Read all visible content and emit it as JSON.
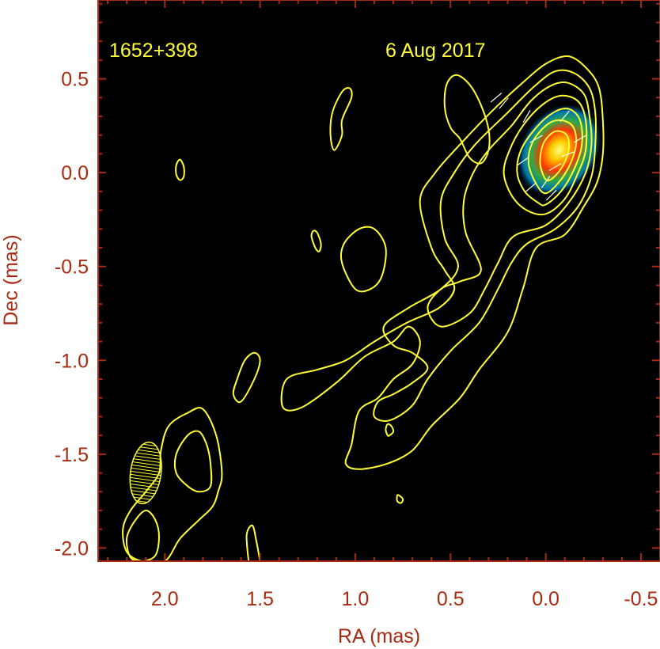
{
  "chart_data": {
    "type": "contour",
    "source": "1652+398",
    "date": "6 Aug 2017",
    "xlabel": "RA (mas)",
    "ylabel": "Dec (mas)",
    "xlim": [
      2.35,
      -0.6
    ],
    "ylim": [
      -2.07,
      0.92
    ],
    "x_ticks": [
      {
        "value": 2.0,
        "label": "2.0"
      },
      {
        "value": 1.5,
        "label": "1.5"
      },
      {
        "value": 1.0,
        "label": "1.0"
      },
      {
        "value": 0.5,
        "label": "0.5"
      },
      {
        "value": 0.0,
        "label": "0.0"
      },
      {
        "value": -0.5,
        "label": "-0.5"
      }
    ],
    "y_ticks": [
      {
        "value": 0.5,
        "label": "0.5"
      },
      {
        "value": 0.0,
        "label": "0.0"
      },
      {
        "value": -0.5,
        "label": "-0.5"
      },
      {
        "value": -1.0,
        "label": "-1.0"
      },
      {
        "value": -1.5,
        "label": "-1.5"
      },
      {
        "value": -2.0,
        "label": "-2.0"
      }
    ],
    "core_peak": {
      "ra": -0.07,
      "dec": 0.12
    },
    "beam": {
      "ra": 2.1,
      "dec": -1.6,
      "major": 0.33,
      "minor": 0.16
    },
    "contours": [
      {
        "name": "c1",
        "points": [
          [
            0.05,
            -0.4
          ],
          [
            -0.1,
            -0.33
          ],
          [
            -0.2,
            -0.18
          ],
          [
            -0.27,
            -0.05
          ],
          [
            -0.3,
            0.1
          ],
          [
            -0.3,
            0.28
          ],
          [
            -0.28,
            0.45
          ],
          [
            -0.22,
            0.55
          ],
          [
            -0.12,
            0.62
          ],
          [
            0.0,
            0.58
          ],
          [
            0.12,
            0.48
          ],
          [
            0.28,
            0.33
          ],
          [
            0.45,
            0.15
          ],
          [
            0.58,
            0.0
          ],
          [
            0.66,
            -0.15
          ],
          [
            0.6,
            -0.4
          ],
          [
            0.53,
            -0.52
          ],
          [
            0.48,
            -0.62
          ],
          [
            0.56,
            -0.72
          ],
          [
            0.73,
            -0.8
          ],
          [
            0.9,
            -0.9
          ],
          [
            1.05,
            -1.0
          ],
          [
            1.2,
            -1.05
          ],
          [
            1.36,
            -1.1
          ],
          [
            1.38,
            -1.25
          ],
          [
            1.28,
            -1.25
          ],
          [
            1.1,
            -1.12
          ],
          [
            0.95,
            -0.98
          ],
          [
            0.8,
            -0.9
          ],
          [
            0.72,
            -0.82
          ],
          [
            0.66,
            -0.9
          ],
          [
            0.7,
            -1.02
          ],
          [
            0.8,
            -1.1
          ],
          [
            0.88,
            -1.2
          ],
          [
            0.98,
            -1.27
          ],
          [
            1.02,
            -1.45
          ],
          [
            1.05,
            -1.55
          ],
          [
            0.98,
            -1.58
          ],
          [
            0.83,
            -1.55
          ],
          [
            0.7,
            -1.48
          ],
          [
            0.6,
            -1.35
          ],
          [
            0.45,
            -1.2
          ],
          [
            0.35,
            -1.05
          ],
          [
            0.2,
            -0.85
          ],
          [
            0.12,
            -0.62
          ],
          [
            0.05,
            -0.4
          ]
        ]
      },
      {
        "name": "c2",
        "points": [
          [
            0.1,
            -0.38
          ],
          [
            -0.05,
            -0.3
          ],
          [
            -0.17,
            -0.18
          ],
          [
            -0.24,
            -0.02
          ],
          [
            -0.26,
            0.15
          ],
          [
            -0.26,
            0.32
          ],
          [
            -0.23,
            0.45
          ],
          [
            -0.15,
            0.53
          ],
          [
            -0.05,
            0.54
          ],
          [
            0.06,
            0.46
          ],
          [
            0.2,
            0.32
          ],
          [
            0.37,
            0.15
          ],
          [
            0.48,
            0.0
          ],
          [
            0.55,
            -0.15
          ],
          [
            0.53,
            -0.35
          ],
          [
            0.46,
            -0.5
          ],
          [
            0.55,
            -0.62
          ],
          [
            0.72,
            -0.72
          ],
          [
            0.85,
            -0.82
          ],
          [
            0.8,
            -0.92
          ],
          [
            0.7,
            -0.96
          ],
          [
            0.62,
            -1.04
          ],
          [
            0.7,
            -1.12
          ],
          [
            0.8,
            -1.18
          ],
          [
            0.88,
            -1.22
          ],
          [
            0.9,
            -1.3
          ],
          [
            0.82,
            -1.32
          ],
          [
            0.7,
            -1.24
          ],
          [
            0.62,
            -1.1
          ],
          [
            0.5,
            -0.95
          ],
          [
            0.35,
            -0.8
          ],
          [
            0.25,
            -0.62
          ],
          [
            0.18,
            -0.48
          ],
          [
            0.1,
            -0.38
          ]
        ]
      },
      {
        "name": "c3",
        "points": [
          [
            0.17,
            -0.34
          ],
          [
            0.0,
            -0.28
          ],
          [
            -0.12,
            -0.16
          ],
          [
            -0.21,
            0.0
          ],
          [
            -0.24,
            0.15
          ],
          [
            -0.23,
            0.3
          ],
          [
            -0.2,
            0.42
          ],
          [
            -0.11,
            0.48
          ],
          [
            -0.02,
            0.46
          ],
          [
            0.08,
            0.38
          ],
          [
            0.18,
            0.25
          ],
          [
            0.3,
            0.12
          ],
          [
            0.38,
            0.0
          ],
          [
            0.43,
            -0.15
          ],
          [
            0.42,
            -0.32
          ],
          [
            0.34,
            -0.52
          ],
          [
            0.45,
            -0.58
          ],
          [
            0.55,
            -0.62
          ],
          [
            0.62,
            -0.72
          ],
          [
            0.55,
            -0.82
          ],
          [
            0.4,
            -0.75
          ],
          [
            0.32,
            -0.62
          ],
          [
            0.25,
            -0.48
          ],
          [
            0.17,
            -0.34
          ]
        ]
      },
      {
        "name": "c4",
        "points": [
          [
            0.0,
            -0.22
          ],
          [
            -0.1,
            -0.14
          ],
          [
            -0.17,
            0.0
          ],
          [
            -0.21,
            0.12
          ],
          [
            -0.21,
            0.28
          ],
          [
            -0.17,
            0.38
          ],
          [
            -0.08,
            0.41
          ],
          [
            0.02,
            0.36
          ],
          [
            0.12,
            0.25
          ],
          [
            0.19,
            0.12
          ],
          [
            0.22,
            0.0
          ],
          [
            0.18,
            -0.12
          ],
          [
            0.1,
            -0.2
          ],
          [
            0.0,
            -0.22
          ]
        ]
      },
      {
        "name": "c5",
        "points": [
          [
            0.0,
            -0.17
          ],
          [
            -0.08,
            -0.1
          ],
          [
            -0.15,
            0.02
          ],
          [
            -0.19,
            0.15
          ],
          [
            -0.18,
            0.28
          ],
          [
            -0.12,
            0.34
          ],
          [
            -0.04,
            0.32
          ],
          [
            0.05,
            0.24
          ],
          [
            0.13,
            0.12
          ],
          [
            0.15,
            0.0
          ],
          [
            0.11,
            -0.1
          ],
          [
            0.04,
            -0.16
          ],
          [
            0.0,
            -0.17
          ]
        ]
      },
      {
        "name": "c6",
        "points": [
          [
            0.0,
            -0.11
          ],
          [
            -0.07,
            -0.05
          ],
          [
            -0.13,
            0.05
          ],
          [
            -0.16,
            0.16
          ],
          [
            -0.14,
            0.25
          ],
          [
            -0.07,
            0.28
          ],
          [
            0.0,
            0.25
          ],
          [
            0.07,
            0.16
          ],
          [
            0.09,
            0.05
          ],
          [
            0.05,
            -0.06
          ],
          [
            0.0,
            -0.11
          ]
        ]
      },
      {
        "name": "c7",
        "points": [
          [
            -0.02,
            -0.04
          ],
          [
            -0.08,
            0.02
          ],
          [
            -0.12,
            0.12
          ],
          [
            -0.11,
            0.2
          ],
          [
            -0.05,
            0.22
          ],
          [
            0.01,
            0.16
          ],
          [
            0.03,
            0.06
          ],
          [
            0.01,
            -0.02
          ],
          [
            -0.02,
            -0.04
          ]
        ]
      },
      {
        "name": "c8",
        "points": [
          [
            0.45,
            0.18
          ],
          [
            0.5,
            0.24
          ],
          [
            0.53,
            0.35
          ],
          [
            0.52,
            0.47
          ],
          [
            0.47,
            0.52
          ],
          [
            0.4,
            0.47
          ],
          [
            0.34,
            0.36
          ],
          [
            0.3,
            0.23
          ],
          [
            0.3,
            0.12
          ],
          [
            0.34,
            0.05
          ],
          [
            0.4,
            0.08
          ],
          [
            0.45,
            0.18
          ]
        ]
      },
      {
        "name": "c9",
        "points": [
          [
            1.0,
            -0.62
          ],
          [
            1.07,
            -0.48
          ],
          [
            1.06,
            -0.38
          ],
          [
            0.98,
            -0.3
          ],
          [
            0.9,
            -0.3
          ],
          [
            0.84,
            -0.4
          ],
          [
            0.86,
            -0.55
          ],
          [
            0.92,
            -0.62
          ],
          [
            1.0,
            -0.62
          ]
        ]
      },
      {
        "name": "c10",
        "points": [
          [
            1.07,
            0.28
          ],
          [
            1.02,
            0.4
          ],
          [
            1.03,
            0.45
          ],
          [
            1.07,
            0.43
          ],
          [
            1.12,
            0.32
          ],
          [
            1.13,
            0.2
          ],
          [
            1.11,
            0.12
          ],
          [
            1.07,
            0.2
          ],
          [
            1.07,
            0.28
          ]
        ]
      },
      {
        "name": "c11",
        "points": [
          [
            1.92,
            0.07
          ],
          [
            1.9,
            0.03
          ],
          [
            1.9,
            -0.02
          ],
          [
            1.92,
            -0.04
          ],
          [
            1.94,
            -0.01
          ],
          [
            1.94,
            0.04
          ],
          [
            1.92,
            0.07
          ]
        ]
      },
      {
        "name": "c12",
        "points": [
          [
            1.2,
            -0.32
          ],
          [
            1.18,
            -0.38
          ],
          [
            1.19,
            -0.42
          ],
          [
            1.21,
            -0.4
          ],
          [
            1.23,
            -0.34
          ],
          [
            1.22,
            -0.31
          ],
          [
            1.2,
            -0.32
          ]
        ]
      },
      {
        "name": "c13",
        "points": [
          [
            1.6,
            -1.22
          ],
          [
            1.53,
            -1.1
          ],
          [
            1.5,
            -1.0
          ],
          [
            1.53,
            -0.96
          ],
          [
            1.58,
            -1.0
          ],
          [
            1.62,
            -1.1
          ],
          [
            1.64,
            -1.18
          ],
          [
            1.6,
            -1.22
          ]
        ]
      },
      {
        "name": "c14",
        "points": [
          [
            0.82,
            -1.4
          ],
          [
            0.8,
            -1.38
          ],
          [
            0.81,
            -1.35
          ],
          [
            0.83,
            -1.34
          ],
          [
            0.84,
            -1.37
          ],
          [
            0.83,
            -1.4
          ],
          [
            0.82,
            -1.4
          ]
        ]
      },
      {
        "name": "c15",
        "points": [
          [
            0.77,
            -1.72
          ],
          [
            0.75,
            -1.74
          ],
          [
            0.76,
            -1.76
          ],
          [
            0.78,
            -1.75
          ],
          [
            0.78,
            -1.72
          ],
          [
            0.77,
            -1.72
          ]
        ]
      },
      {
        "name": "c16",
        "points": [
          [
            1.72,
            -1.7
          ],
          [
            1.7,
            -1.6
          ],
          [
            1.73,
            -1.4
          ],
          [
            1.8,
            -1.26
          ],
          [
            1.88,
            -1.28
          ],
          [
            1.98,
            -1.35
          ],
          [
            2.02,
            -1.48
          ],
          [
            2.03,
            -1.6
          ],
          [
            2.1,
            -1.7
          ],
          [
            2.18,
            -1.8
          ],
          [
            2.22,
            -1.9
          ],
          [
            2.2,
            -2.02
          ],
          [
            2.12,
            -2.07
          ],
          [
            2.0,
            -2.07
          ],
          [
            1.92,
            -1.95
          ],
          [
            1.82,
            -1.85
          ],
          [
            1.75,
            -1.78
          ],
          [
            1.72,
            -1.7
          ]
        ]
      },
      {
        "name": "c17",
        "points": [
          [
            1.76,
            -1.67
          ],
          [
            1.76,
            -1.55
          ],
          [
            1.78,
            -1.45
          ],
          [
            1.82,
            -1.38
          ],
          [
            1.88,
            -1.4
          ],
          [
            1.94,
            -1.5
          ],
          [
            1.94,
            -1.6
          ],
          [
            1.88,
            -1.67
          ],
          [
            1.82,
            -1.7
          ],
          [
            1.76,
            -1.67
          ]
        ]
      },
      {
        "name": "c18",
        "points": [
          [
            2.1,
            -1.8
          ],
          [
            2.16,
            -1.86
          ],
          [
            2.2,
            -1.95
          ],
          [
            2.18,
            -2.05
          ],
          [
            2.12,
            -2.07
          ],
          [
            2.05,
            -2.04
          ],
          [
            2.03,
            -1.94
          ],
          [
            2.05,
            -1.85
          ],
          [
            2.1,
            -1.8
          ]
        ]
      },
      {
        "name": "c19",
        "points": [
          [
            1.5,
            -2.07
          ],
          [
            1.52,
            -1.96
          ],
          [
            1.54,
            -1.88
          ],
          [
            1.57,
            -1.93
          ],
          [
            1.56,
            -2.07
          ]
        ]
      }
    ]
  }
}
